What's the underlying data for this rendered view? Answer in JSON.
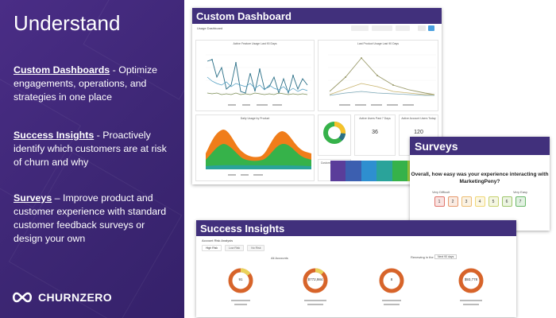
{
  "left": {
    "title": "Understand",
    "features": [
      {
        "head": "Custom Dashboards",
        "sep": " -  ",
        "body": "Optimize engagements, operations, and strategies in one place"
      },
      {
        "head": "Success Insights",
        "sep": " -  ",
        "body": "Proactively identify which customers are at risk of churn and why"
      },
      {
        "head": "Surveys",
        "sep": " – ",
        "body": "Improve product and customer experience with standard customer feedback surveys or design your own"
      }
    ],
    "logo_text": "CHURNZERO"
  },
  "dashboard": {
    "title": "Custom Dashboard",
    "sub_label": "Usage Dashboard",
    "panel_titles": [
      "Active Feature Usage Last 90 Days",
      "Last Product Usage Last 90 Days",
      "Daily Usage by Product",
      "Customers by Product"
    ],
    "kpis": [
      {
        "label": "Active Users Past 7 Days",
        "value": "36"
      },
      {
        "label": "Active Account Users Today",
        "value": "120"
      }
    ],
    "colors": {
      "header": "#41307c",
      "green": "#36b24a",
      "orange": "#f07d1a",
      "teal": "#2aa39a"
    }
  },
  "surveys": {
    "title": "Surveys",
    "question": "Overall, how easy was your experience interacting with MarketingPeny?",
    "scale_low": "Very Difficult",
    "scale_high": "Very Easy",
    "options": [
      "1",
      "2",
      "3",
      "4",
      "5",
      "6",
      "7"
    ],
    "option_colors": [
      "#e0736b",
      "#e79a6e",
      "#edbd72",
      "#f0d775",
      "#c8d26f",
      "#9ec66b",
      "#6bb86a"
    ]
  },
  "insights": {
    "title": "Success Insights",
    "sub_title": "Account Risk Analysis",
    "tabs": [
      "High Risk",
      "Low Risk",
      "No Risk"
    ],
    "section_left": "All Accounts",
    "section_right": "Renewing in the",
    "select_value": "Next 90 days",
    "donuts": [
      {
        "value": "91"
      },
      {
        "value": "$772,984"
      },
      {
        "value": "8"
      },
      {
        "value": "$93,778"
      }
    ]
  }
}
